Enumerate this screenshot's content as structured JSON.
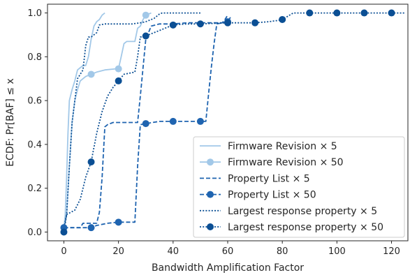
{
  "chart_data": {
    "type": "line",
    "title": "",
    "xlabel": "Bandwidth Amplification Factor",
    "ylabel": "ECDF: Pr[BAF] ≤ x",
    "xlim": [
      -6,
      126
    ],
    "ylim": [
      -0.04,
      1.04
    ],
    "xticks": [
      0,
      20,
      40,
      60,
      80,
      100,
      120
    ],
    "yticks": [
      0.0,
      0.2,
      0.4,
      0.6,
      0.8,
      1.0
    ],
    "xtick_labels": [
      "0",
      "20",
      "40",
      "60",
      "80",
      "100",
      "120"
    ],
    "ytick_labels": [
      "0.0",
      "0.2",
      "0.4",
      "0.6",
      "0.8",
      "1.0"
    ],
    "grid": false,
    "legend_position": "lower-right",
    "series": [
      {
        "name": "Firmware Revision × 5",
        "color": "#a2c8e8",
        "linestyle": "solid",
        "marker": false,
        "points": [
          [
            0,
            0.02
          ],
          [
            0.5,
            0.08
          ],
          [
            1,
            0.25
          ],
          [
            1.5,
            0.45
          ],
          [
            2,
            0.6
          ],
          [
            3,
            0.65
          ],
          [
            4,
            0.69
          ],
          [
            5,
            0.74
          ],
          [
            6,
            0.75
          ],
          [
            7,
            0.76
          ],
          [
            8,
            0.76
          ],
          [
            9,
            0.8
          ],
          [
            10,
            0.88
          ],
          [
            11,
            0.94
          ],
          [
            12,
            0.96
          ],
          [
            13,
            0.97
          ],
          [
            14,
            0.99
          ],
          [
            15,
            1.0
          ]
        ]
      },
      {
        "name": "Firmware Revision × 50",
        "color": "#a2c8e8",
        "linestyle": "solid",
        "marker": true,
        "marker_x": [
          0,
          10,
          20,
          30
        ],
        "points": [
          [
            0,
            0.02
          ],
          [
            1,
            0.08
          ],
          [
            2,
            0.3
          ],
          [
            3,
            0.5
          ],
          [
            4,
            0.6
          ],
          [
            5,
            0.65
          ],
          [
            6,
            0.69
          ],
          [
            8,
            0.71
          ],
          [
            10,
            0.72
          ],
          [
            12,
            0.73
          ],
          [
            15,
            0.74
          ],
          [
            19,
            0.745
          ],
          [
            20,
            0.745
          ],
          [
            21,
            0.8
          ],
          [
            22,
            0.86
          ],
          [
            23,
            0.87
          ],
          [
            26,
            0.87
          ],
          [
            27,
            0.93
          ],
          [
            28,
            0.94
          ],
          [
            29,
            0.97
          ],
          [
            30,
            0.99
          ],
          [
            31,
            0.995
          ],
          [
            32,
            1.0
          ]
        ]
      },
      {
        "name": "Property List × 5",
        "color": "#1f64b0",
        "linestyle": "dashed",
        "marker": false,
        "points": [
          [
            0,
            0.02
          ],
          [
            6,
            0.02
          ],
          [
            7,
            0.04
          ],
          [
            12,
            0.04
          ],
          [
            13,
            0.09
          ],
          [
            14,
            0.25
          ],
          [
            15,
            0.48
          ],
          [
            16,
            0.49
          ],
          [
            18,
            0.5
          ],
          [
            25,
            0.5
          ],
          [
            27,
            0.5
          ],
          [
            28,
            0.62
          ],
          [
            29,
            0.75
          ],
          [
            30,
            0.88
          ],
          [
            32,
            0.94
          ],
          [
            35,
            0.95
          ],
          [
            40,
            0.95
          ],
          [
            45,
            0.955
          ],
          [
            50,
            0.955
          ],
          [
            58,
            0.955
          ],
          [
            59,
            0.97
          ],
          [
            60,
            0.99
          ]
        ]
      },
      {
        "name": "Property List × 50",
        "color": "#1f64b0",
        "linestyle": "dashed",
        "marker": true,
        "marker_x": [
          0,
          10,
          20,
          30,
          40,
          50,
          60
        ],
        "points": [
          [
            0,
            0.02
          ],
          [
            10,
            0.02
          ],
          [
            12,
            0.03
          ],
          [
            16,
            0.04
          ],
          [
            20,
            0.045
          ],
          [
            26,
            0.045
          ],
          [
            27,
            0.3
          ],
          [
            28,
            0.49
          ],
          [
            30,
            0.495
          ],
          [
            35,
            0.505
          ],
          [
            40,
            0.505
          ],
          [
            50,
            0.505
          ],
          [
            52,
            0.505
          ],
          [
            53,
            0.63
          ],
          [
            54,
            0.75
          ],
          [
            55,
            0.86
          ],
          [
            56,
            0.95
          ],
          [
            60,
            0.96
          ],
          [
            61,
            0.98
          ]
        ]
      },
      {
        "name": "Largest response property × 5",
        "color": "#0b4f94",
        "linestyle": "dotted",
        "marker": false,
        "points": [
          [
            0,
            0.02
          ],
          [
            1,
            0.08
          ],
          [
            2,
            0.3
          ],
          [
            3,
            0.5
          ],
          [
            4,
            0.6
          ],
          [
            5,
            0.7
          ],
          [
            6,
            0.72
          ],
          [
            7,
            0.74
          ],
          [
            8,
            0.85
          ],
          [
            9,
            0.89
          ],
          [
            10,
            0.89
          ],
          [
            12,
            0.91
          ],
          [
            13,
            0.945
          ],
          [
            15,
            0.95
          ],
          [
            25,
            0.95
          ],
          [
            28,
            0.955
          ],
          [
            30,
            0.96
          ],
          [
            33,
            0.975
          ],
          [
            35,
            0.995
          ],
          [
            36,
            1.0
          ],
          [
            50,
            1.0
          ]
        ]
      },
      {
        "name": "Largest response property × 50",
        "color": "#0b4f94",
        "linestyle": "dotted",
        "marker": true,
        "marker_x": [
          0,
          10,
          20,
          30,
          40,
          50,
          60,
          70,
          80,
          90,
          100,
          110,
          120
        ],
        "points": [
          [
            0,
            0.0
          ],
          [
            1,
            0.08
          ],
          [
            4,
            0.1
          ],
          [
            6,
            0.15
          ],
          [
            8,
            0.25
          ],
          [
            10,
            0.32
          ],
          [
            12,
            0.45
          ],
          [
            14,
            0.55
          ],
          [
            16,
            0.62
          ],
          [
            18,
            0.66
          ],
          [
            20,
            0.69
          ],
          [
            22,
            0.72
          ],
          [
            26,
            0.73
          ],
          [
            27,
            0.8
          ],
          [
            28,
            0.89
          ],
          [
            30,
            0.895
          ],
          [
            35,
            0.92
          ],
          [
            40,
            0.945
          ],
          [
            45,
            0.95
          ],
          [
            50,
            0.95
          ],
          [
            60,
            0.955
          ],
          [
            70,
            0.955
          ],
          [
            75,
            0.96
          ],
          [
            78,
            0.965
          ],
          [
            80,
            0.97
          ],
          [
            82,
            0.985
          ],
          [
            84,
            1.0
          ],
          [
            90,
            1.0
          ],
          [
            100,
            1.0
          ],
          [
            110,
            1.0
          ],
          [
            120,
            1.0
          ],
          [
            125,
            1.0
          ]
        ]
      }
    ]
  }
}
